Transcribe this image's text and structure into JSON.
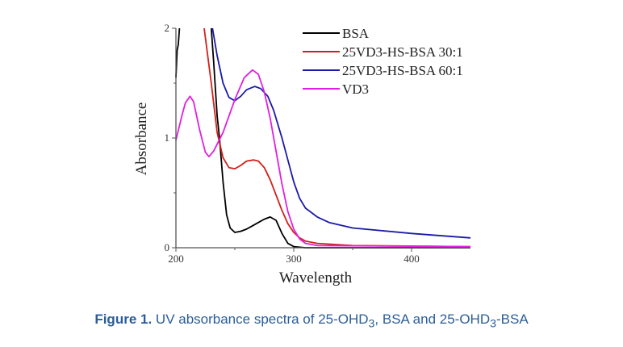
{
  "chart_data": {
    "type": "line",
    "xlabel": "Wavelength",
    "ylabel": "Absorbance",
    "xlim": [
      200,
      450
    ],
    "ylim": [
      0,
      2
    ],
    "xticks": [
      "200",
      "300",
      "400"
    ],
    "yticks": [
      "0",
      "1",
      "2"
    ],
    "grid": false,
    "legend_position": "top-right",
    "series": [
      {
        "name": "BSA",
        "color": "#000000",
        "segments": [
          [
            [
              200,
              1.55
            ],
            [
              201,
              1.8
            ],
            [
              202,
              1.85
            ],
            [
              203,
              2.0
            ]
          ],
          [
            [
              230,
              2.0
            ],
            [
              232,
              1.7
            ],
            [
              235,
              1.2
            ],
            [
              237,
              1.0
            ],
            [
              240,
              0.6
            ],
            [
              243,
              0.3
            ],
            [
              246,
              0.18
            ],
            [
              250,
              0.14
            ],
            [
              255,
              0.15
            ],
            [
              260,
              0.17
            ],
            [
              265,
              0.2
            ],
            [
              270,
              0.23
            ],
            [
              275,
              0.26
            ],
            [
              280,
              0.28
            ],
            [
              285,
              0.25
            ],
            [
              290,
              0.13
            ],
            [
              295,
              0.04
            ],
            [
              300,
              0.01
            ],
            [
              310,
              0.0
            ],
            [
              450,
              0.0
            ]
          ]
        ]
      },
      {
        "name": "25VD3-HS-BSA 30:1",
        "color": "#d0201a",
        "segments": [
          [
            [
              224,
              2.0
            ],
            [
              230,
              1.5
            ],
            [
              235,
              1.05
            ],
            [
              240,
              0.82
            ],
            [
              245,
              0.73
            ],
            [
              250,
              0.72
            ],
            [
              255,
              0.75
            ],
            [
              260,
              0.79
            ],
            [
              266,
              0.8
            ],
            [
              270,
              0.79
            ],
            [
              275,
              0.73
            ],
            [
              280,
              0.62
            ],
            [
              285,
              0.48
            ],
            [
              290,
              0.34
            ],
            [
              295,
              0.22
            ],
            [
              300,
              0.14
            ],
            [
              305,
              0.09
            ],
            [
              310,
              0.06
            ],
            [
              320,
              0.04
            ],
            [
              350,
              0.02
            ],
            [
              450,
              0.01
            ]
          ]
        ]
      },
      {
        "name": "25VD3-HS-BSA 60:1",
        "color": "#1a1aa8",
        "segments": [
          [
            [
              231,
              2.0
            ],
            [
              235,
              1.75
            ],
            [
              240,
              1.5
            ],
            [
              245,
              1.37
            ],
            [
              250,
              1.34
            ],
            [
              255,
              1.38
            ],
            [
              260,
              1.44
            ],
            [
              267,
              1.47
            ],
            [
              272,
              1.45
            ],
            [
              278,
              1.38
            ],
            [
              283,
              1.25
            ],
            [
              290,
              1.0
            ],
            [
              295,
              0.8
            ],
            [
              300,
              0.6
            ],
            [
              305,
              0.45
            ],
            [
              310,
              0.36
            ],
            [
              320,
              0.28
            ],
            [
              330,
              0.23
            ],
            [
              350,
              0.18
            ],
            [
              400,
              0.13
            ],
            [
              450,
              0.09
            ]
          ]
        ]
      },
      {
        "name": "VD3",
        "color": "#e020e0",
        "segments": [
          [
            [
              200,
              0.98
            ],
            [
              205,
              1.2
            ],
            [
              208,
              1.32
            ],
            [
              212,
              1.38
            ],
            [
              215,
              1.33
            ],
            [
              220,
              1.08
            ],
            [
              225,
              0.87
            ],
            [
              228,
              0.83
            ],
            [
              232,
              0.88
            ],
            [
              240,
              1.05
            ],
            [
              250,
              1.35
            ],
            [
              258,
              1.55
            ],
            [
              265,
              1.62
            ],
            [
              270,
              1.58
            ],
            [
              275,
              1.42
            ],
            [
              280,
              1.18
            ],
            [
              285,
              0.88
            ],
            [
              290,
              0.58
            ],
            [
              295,
              0.33
            ],
            [
              300,
              0.17
            ],
            [
              305,
              0.08
            ],
            [
              310,
              0.04
            ],
            [
              320,
              0.02
            ],
            [
              450,
              0.01
            ]
          ]
        ]
      }
    ]
  },
  "caption": {
    "label": "Figure 1.",
    "text_parts": [
      " UV absorbance spectra of 25-OHD",
      "3",
      ", BSA and 25-OHD",
      "3",
      "-BSA"
    ]
  }
}
